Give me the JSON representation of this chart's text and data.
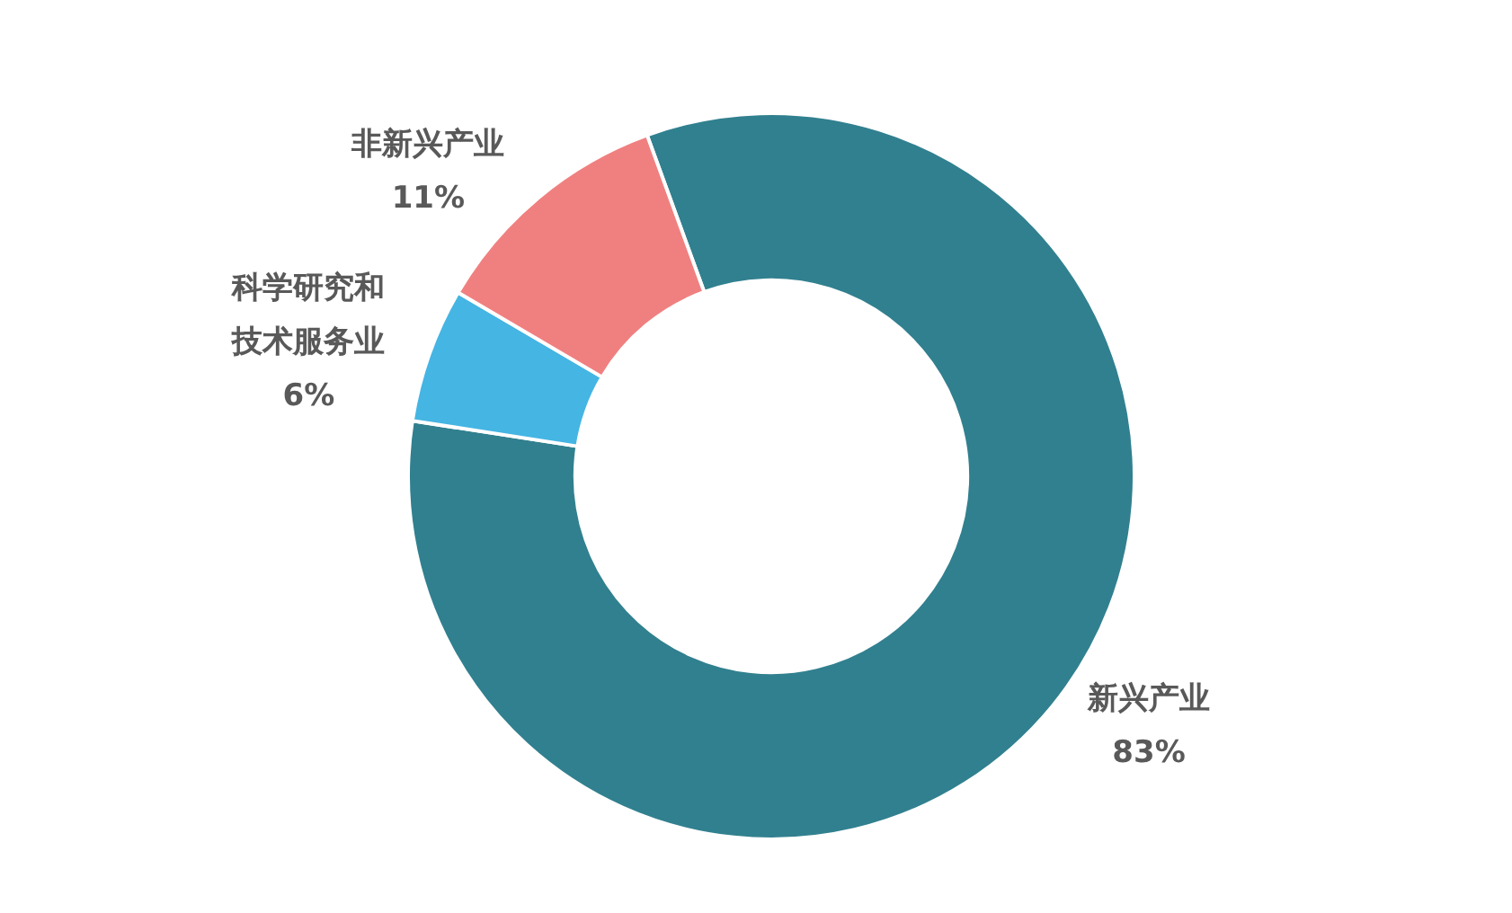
{
  "chart_data": {
    "type": "donut",
    "categories": [
      "新兴产业",
      "科学研究和技术服务业",
      "非新兴产业"
    ],
    "values": [
      83,
      6,
      11
    ],
    "colors": [
      "#31808f",
      "#45b5e3",
      "#f08080"
    ],
    "value_labels": [
      "83%",
      "6%",
      "11%"
    ],
    "legend": false
  }
}
